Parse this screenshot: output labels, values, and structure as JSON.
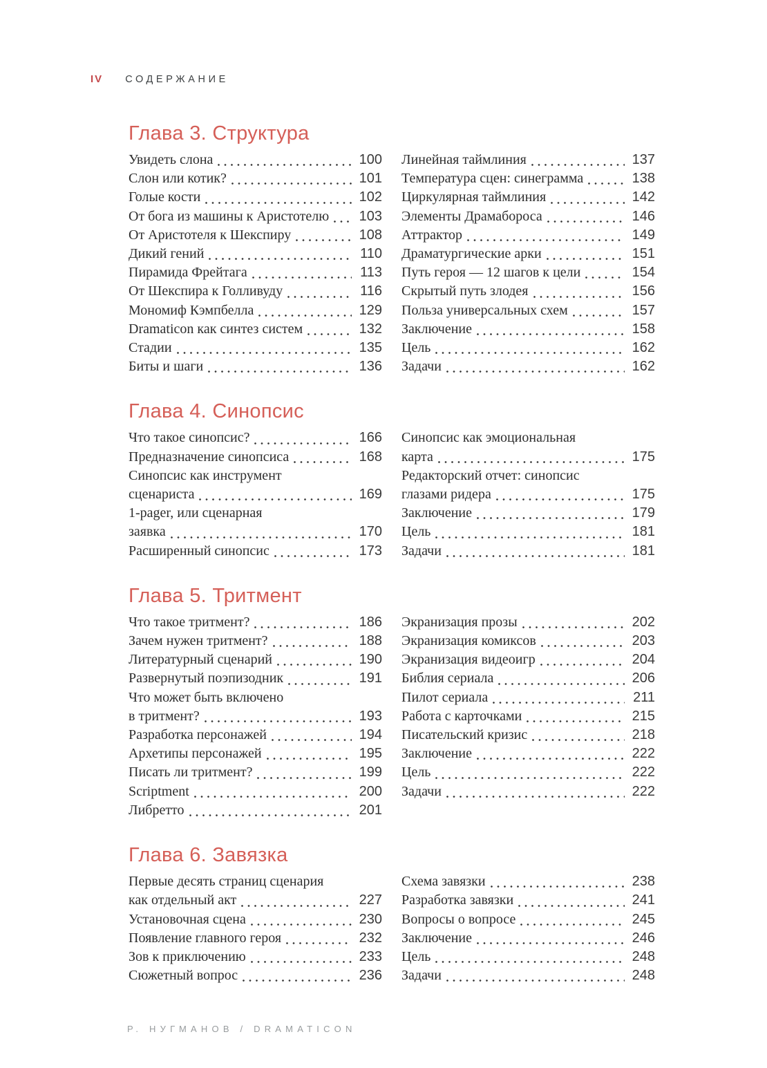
{
  "page_header": {
    "page_number": "IV",
    "title": "СОДЕРЖАНИЕ"
  },
  "footer": {
    "text": "Р. НУГМАНОВ / DRAMATICON"
  },
  "colors": {
    "folio_red": "#c4494c",
    "chapter_heading_red": "#d55f58",
    "body_text": "#2e2e2e",
    "page_number_gray": "#3a3a3a",
    "footer_gray": "#989c9e"
  },
  "chapters": [
    {
      "title": "Глава 3. Структура",
      "left": [
        {
          "text": "Увидеть слона",
          "page": "100"
        },
        {
          "text": "Слон или котик?",
          "page": "101"
        },
        {
          "text": "Голые кости",
          "page": "102"
        },
        {
          "text": "От бога из машины к Аристотелю",
          "page": "103"
        },
        {
          "text": "От Аристотеля к Шекспиру",
          "page": "108"
        },
        {
          "text": "Дикий гений",
          "page": "110"
        },
        {
          "text": "Пирамида Фрейтага",
          "page": "113"
        },
        {
          "text": "От Шекспира к Голливуду",
          "page": "116"
        },
        {
          "text": "Мономиф Кэмпбелла",
          "page": "129"
        },
        {
          "text": "Dramaticon как синтез систем",
          "page": "132"
        },
        {
          "text": "Стадии",
          "page": "135"
        },
        {
          "text": "Биты и шаги",
          "page": "136"
        }
      ],
      "right": [
        {
          "text": "Линейная таймлиния",
          "page": "137"
        },
        {
          "text": "Температура сцен: синеграмма",
          "page": "138"
        },
        {
          "text": "Циркулярная таймлиния",
          "page": "142"
        },
        {
          "text": "Элементы Драмабороса",
          "page": "146"
        },
        {
          "text": "Аттрактор",
          "page": "149"
        },
        {
          "text": "Драматургические арки",
          "page": "151"
        },
        {
          "text": "Путь героя — 12 шагов к цели",
          "page": "154"
        },
        {
          "text": "Скрытый путь злодея",
          "page": "156"
        },
        {
          "text": "Польза универсальных схем",
          "page": "157"
        },
        {
          "text": "Заключение",
          "page": "158"
        },
        {
          "text": "Цель",
          "page": "162"
        },
        {
          "text": "Задачи",
          "page": "162"
        }
      ]
    },
    {
      "title": "Глава 4. Синопсис",
      "left": [
        {
          "text": "Что такое синопсис?",
          "page": "166"
        },
        {
          "text": "Предназначение синопсиса",
          "page": "168"
        },
        {
          "lines": [
            "Синопсис как инструмент",
            "сценариста"
          ],
          "page": "169"
        },
        {
          "lines": [
            "1-pager, или сценарная",
            "заявка"
          ],
          "page": "170"
        },
        {
          "text": "Расширенный синопсис",
          "page": "173"
        }
      ],
      "right": [
        {
          "lines": [
            "Синопсис как эмоциональная",
            "карта"
          ],
          "page": "175"
        },
        {
          "lines": [
            "Редакторский отчет: синопсис",
            "глазами ридера"
          ],
          "page": "175"
        },
        {
          "text": "Заключение",
          "page": "179"
        },
        {
          "text": "Цель",
          "page": "181"
        },
        {
          "text": "Задачи",
          "page": "181"
        }
      ]
    },
    {
      "title": "Глава 5. Тритмент",
      "left": [
        {
          "text": "Что такое тритмент?",
          "page": "186"
        },
        {
          "text": "Зачем нужен тритмент?",
          "page": "188"
        },
        {
          "text": "Литературный сценарий",
          "page": "190"
        },
        {
          "text": "Развернутый поэпизодник",
          "page": "191"
        },
        {
          "lines": [
            "Что может быть включено",
            "в тритмент?"
          ],
          "page": "193"
        },
        {
          "text": "Разработка персонажей",
          "page": "194"
        },
        {
          "text": "Архетипы персонажей",
          "page": "195"
        },
        {
          "text": "Писать ли тритмент?",
          "page": "199"
        },
        {
          "text": "Scriptment",
          "page": "200"
        },
        {
          "text": "Либретто",
          "page": "201"
        }
      ],
      "right": [
        {
          "text": "Экранизация прозы",
          "page": "202"
        },
        {
          "text": "Экранизация комиксов",
          "page": "203"
        },
        {
          "text": "Экранизация видеоигр",
          "page": "204"
        },
        {
          "text": "Библия сериала",
          "page": "206"
        },
        {
          "text": "Пилот сериала",
          "page": "211"
        },
        {
          "text": "Работа с карточками",
          "page": "215"
        },
        {
          "text": "Писательский кризис",
          "page": "218"
        },
        {
          "text": "Заключение",
          "page": "222"
        },
        {
          "text": "Цель",
          "page": "222"
        },
        {
          "text": "Задачи",
          "page": "222"
        }
      ]
    },
    {
      "title": "Глава 6. Завязка",
      "left": [
        {
          "lines": [
            "Первые десять страниц сценария",
            "как отдельный акт"
          ],
          "page": "227"
        },
        {
          "text": "Установочная сцена",
          "page": "230"
        },
        {
          "text": "Появление главного героя",
          "page": "232"
        },
        {
          "text": "Зов к приключению",
          "page": "233"
        },
        {
          "text": "Сюжетный вопрос",
          "page": "236"
        }
      ],
      "right": [
        {
          "text": "Схема завязки",
          "page": "238"
        },
        {
          "text": "Разработка завязки",
          "page": "241"
        },
        {
          "text": "Вопросы о вопросе",
          "page": "245"
        },
        {
          "text": "Заключение",
          "page": "246"
        },
        {
          "text": "Цель",
          "page": "248"
        },
        {
          "text": "Задачи",
          "page": "248"
        }
      ]
    }
  ]
}
